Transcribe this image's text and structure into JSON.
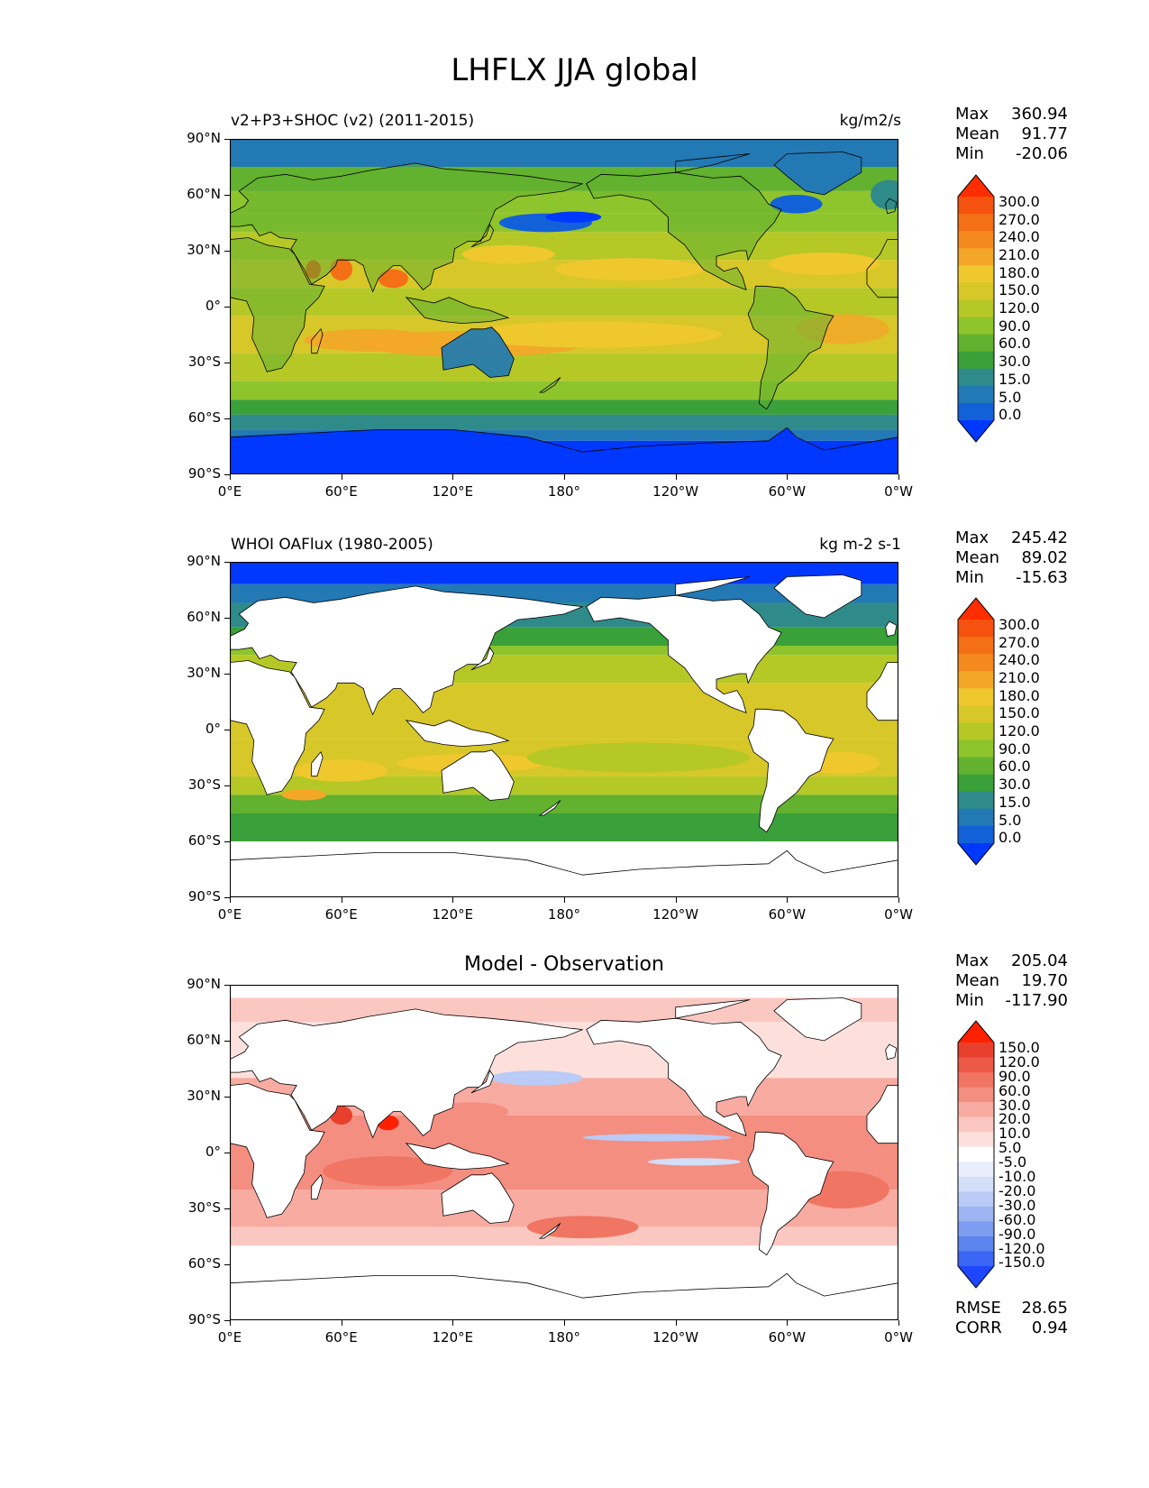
{
  "figure_title": "LHFLX JJA global",
  "lat_ticks": [
    "90°N",
    "60°N",
    "30°N",
    "0°",
    "30°S",
    "60°S",
    "90°S"
  ],
  "lon_ticks": [
    "0°E",
    "60°E",
    "120°E",
    "180°",
    "120°W",
    "60°W",
    "0°W"
  ],
  "colors": {
    "absolute_scale": [
      "#0038ff",
      "#1361d9",
      "#2379b3",
      "#2f8a8a",
      "#3aa03a",
      "#62b12f",
      "#8ec42c",
      "#b5c826",
      "#d7c728",
      "#efc82e",
      "#f4a628",
      "#f48a1e",
      "#f46f16",
      "#f4520e",
      "#ff2d00"
    ],
    "diff_scale": [
      "#1e46ff",
      "#3b66f5",
      "#5c84ee",
      "#7e9df0",
      "#9db5f3",
      "#b9cbf6",
      "#d3def9",
      "#e8eefc",
      "#ffffff",
      "#fde0dc",
      "#fbc8c1",
      "#f8aba1",
      "#f48e80",
      "#f07563",
      "#ec5a47",
      "#e8402c",
      "#ff2000"
    ]
  },
  "panels": [
    {
      "left_label": "v2+P3+SHOC (v2) (2011-2015)",
      "right_label": "kg/m2/s",
      "stats": [
        {
          "key": "Max",
          "value": "360.94"
        },
        {
          "key": "Mean",
          "value": "91.77"
        },
        {
          "key": "Min",
          "value": "-20.06"
        }
      ],
      "colorbar_labels": [
        "300.0",
        "270.0",
        "240.0",
        "210.0",
        "180.0",
        "150.0",
        "120.0",
        "90.0",
        "60.0",
        "30.0",
        "15.0",
        "5.0",
        "0.0"
      ]
    },
    {
      "left_label": "WHOI OAFlux (1980-2005)",
      "right_label": "kg m-2 s-1",
      "stats": [
        {
          "key": "Max",
          "value": "245.42"
        },
        {
          "key": "Mean",
          "value": "89.02"
        },
        {
          "key": "Min",
          "value": "-15.63"
        }
      ],
      "colorbar_labels": [
        "300.0",
        "270.0",
        "240.0",
        "210.0",
        "180.0",
        "150.0",
        "120.0",
        "90.0",
        "60.0",
        "30.0",
        "15.0",
        "5.0",
        "0.0"
      ]
    },
    {
      "center_label": "Model - Observation",
      "stats": [
        {
          "key": "Max",
          "value": "205.04"
        },
        {
          "key": "Mean",
          "value": "19.70"
        },
        {
          "key": "Min",
          "value": "-117.90"
        }
      ],
      "colorbar_labels": [
        "150.0",
        "120.0",
        "90.0",
        "60.0",
        "30.0",
        "20.0",
        "10.0",
        "5.0",
        "-5.0",
        "-10.0",
        "-20.0",
        "-30.0",
        "-60.0",
        "-90.0",
        "-120.0",
        "-150.0"
      ],
      "extra_stats": [
        {
          "key": "RMSE",
          "value": "28.65"
        },
        {
          "key": "CORR",
          "value": "0.94"
        }
      ]
    }
  ]
}
